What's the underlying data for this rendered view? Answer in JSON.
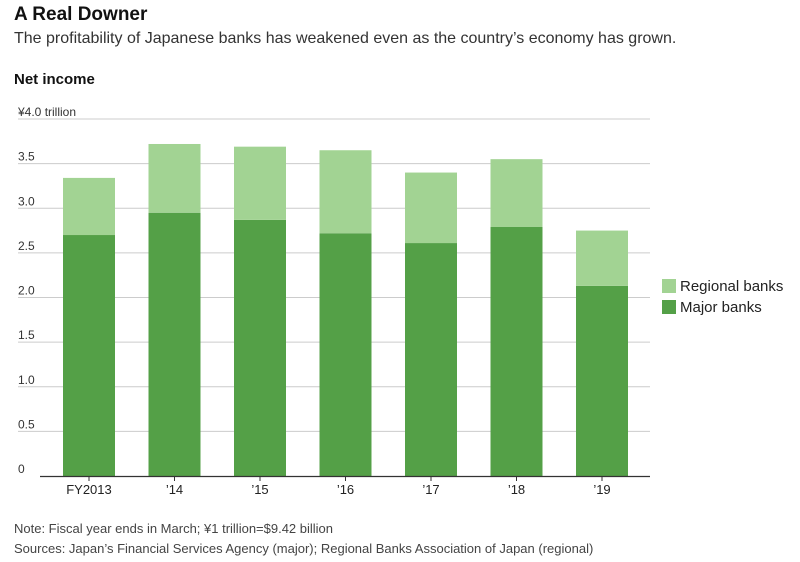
{
  "header": {
    "title": "A Real Downer",
    "subtitle": "The profitability of Japanese banks has weakened even as the country’s economy has grown.",
    "section_label": "Net income"
  },
  "footer": {
    "note": "Note: Fiscal year ends in March; ¥1 trillion=$9.42 billion",
    "source": "Sources: Japan’s Financial Services Agency (major); Regional Banks Association of Japan (regional)"
  },
  "colors": {
    "major": "#54a047",
    "regional": "#a2d393",
    "grid": "#cccccc",
    "axis": "#333333"
  },
  "chart_data": {
    "type": "bar",
    "stacked": true,
    "title": "Net income",
    "xlabel": "",
    "ylabel": "",
    "ylim": [
      0,
      4.0
    ],
    "yticks": [
      0,
      0.5,
      1.0,
      1.5,
      2.0,
      2.5,
      3.0,
      3.5,
      4.0
    ],
    "ytick_labels": [
      "0",
      "0.5",
      "1.0",
      "1.5",
      "2.0",
      "2.5",
      "3.0",
      "3.5",
      "¥4.0 trillion"
    ],
    "categories": [
      "FY2013",
      "’14",
      "’15",
      "’16",
      "’17",
      "’18",
      "’19"
    ],
    "series": [
      {
        "name": "Major banks",
        "values": [
          2.7,
          2.95,
          2.87,
          2.72,
          2.61,
          2.79,
          2.13
        ]
      },
      {
        "name": "Regional banks",
        "values": [
          0.64,
          0.77,
          0.82,
          0.93,
          0.79,
          0.76,
          0.62
        ]
      }
    ],
    "legend": [
      "Regional banks",
      "Major banks"
    ],
    "legend_position": "right"
  }
}
